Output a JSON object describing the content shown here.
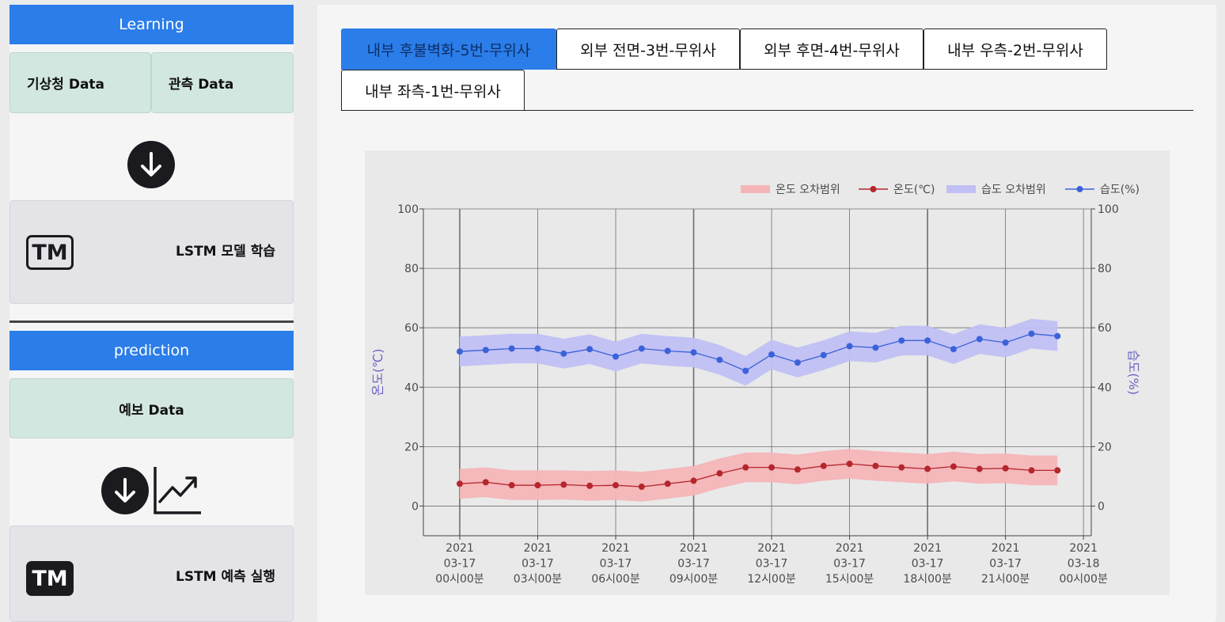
{
  "sidebar": {
    "learning_title": "Learning",
    "kma_data": "기상청 Data",
    "obs_data": "관측 Data",
    "train_label": "LSTM 모델 학습",
    "tm_text": "TM",
    "prediction_title": "prediction",
    "forecast_data": "예보 Data",
    "predict_label": "LSTM 예측 실행"
  },
  "tabs": [
    {
      "label": "내부 후불벽화-5번-무위사",
      "active": true
    },
    {
      "label": "외부 전면-3번-무위사",
      "active": false
    },
    {
      "label": "외부 후면-4번-무위사",
      "active": false
    },
    {
      "label": "내부 우측-2번-무위사",
      "active": false
    },
    {
      "label": "내부 좌측-1번-무위사",
      "active": false
    }
  ],
  "chart_data": {
    "type": "line",
    "legend_position": "top-right",
    "grid": true,
    "colors": {
      "temp": "#b5272d",
      "temp_band": "#f5b5b8",
      "hum": "#3b62d9",
      "hum_band": "#c0c0f4"
    },
    "legend": [
      "온도 오차범위",
      "온도(℃)",
      "습도 오차범위",
      "습도(%)"
    ],
    "y_left": {
      "label": "온도(℃)",
      "range": [
        -10,
        100
      ],
      "ticks": [
        0,
        20,
        40,
        60,
        80,
        100
      ]
    },
    "y_right": {
      "label": "습도(%)",
      "range": [
        -10,
        100
      ],
      "ticks": [
        0,
        20,
        40,
        60,
        80,
        100
      ]
    },
    "x_ticks": [
      {
        "h": 0,
        "lines": [
          "2021",
          "03-17",
          "00시00분"
        ]
      },
      {
        "h": 3,
        "lines": [
          "2021",
          "03-17",
          "03시00분"
        ]
      },
      {
        "h": 6,
        "lines": [
          "2021",
          "03-17",
          "06시00분"
        ]
      },
      {
        "h": 9,
        "lines": [
          "2021",
          "03-17",
          "09시00분"
        ]
      },
      {
        "h": 12,
        "lines": [
          "2021",
          "03-17",
          "12시00분"
        ]
      },
      {
        "h": 15,
        "lines": [
          "2021",
          "03-17",
          "15시00분"
        ]
      },
      {
        "h": 18,
        "lines": [
          "2021",
          "03-17",
          "18시00분"
        ]
      },
      {
        "h": 21,
        "lines": [
          "2021",
          "03-17",
          "21시00분"
        ]
      },
      {
        "h": 24,
        "lines": [
          "2021",
          "03-18",
          "00시00분"
        ]
      }
    ],
    "x_range_hours": [
      -1.4,
      24.3
    ],
    "x_hours": [
      0,
      1,
      2,
      3,
      4,
      5,
      6,
      7,
      8,
      9,
      10,
      11,
      12,
      13,
      14,
      15,
      16,
      17,
      18,
      19,
      20,
      21,
      22,
      23
    ],
    "series": [
      {
        "name": "온도(℃)",
        "axis": "left",
        "values": [
          7.5,
          8.0,
          7.0,
          7.0,
          7.2,
          6.8,
          7.0,
          6.5,
          7.5,
          8.5,
          11.0,
          13.0,
          13.0,
          12.3,
          13.5,
          14.2,
          13.5,
          13.0,
          12.5,
          13.3,
          12.5,
          12.7,
          12.0,
          12.0
        ],
        "band_upper": [
          12.5,
          13.0,
          12.0,
          12.0,
          12.0,
          11.8,
          12.0,
          11.5,
          12.5,
          13.5,
          16.0,
          18.0,
          18.0,
          17.3,
          18.5,
          19.2,
          18.5,
          18.0,
          17.5,
          18.3,
          17.5,
          17.7,
          17.0,
          17.0
        ],
        "band_lower": [
          2.5,
          3.0,
          2.0,
          2.0,
          2.2,
          1.8,
          2.0,
          1.5,
          2.5,
          3.5,
          6.0,
          8.0,
          8.0,
          7.3,
          8.5,
          9.2,
          8.5,
          8.0,
          7.5,
          8.3,
          7.5,
          7.7,
          7.0,
          7.0
        ]
      },
      {
        "name": "습도(%)",
        "axis": "right",
        "values": [
          52.0,
          52.5,
          53.0,
          53.0,
          51.3,
          52.8,
          50.3,
          53.0,
          52.2,
          51.7,
          49.2,
          45.5,
          51.0,
          48.3,
          50.8,
          53.8,
          53.3,
          55.7,
          55.7,
          52.8,
          56.2,
          55.0,
          58.0,
          57.2
        ],
        "band_upper": [
          57.0,
          57.5,
          58.0,
          58.0,
          56.3,
          57.8,
          55.3,
          58.0,
          57.2,
          56.7,
          54.2,
          50.5,
          56.0,
          53.3,
          55.8,
          58.8,
          58.3,
          60.7,
          60.7,
          57.8,
          61.2,
          60.0,
          63.0,
          62.2
        ],
        "band_lower": [
          47.0,
          47.5,
          48.0,
          48.0,
          46.3,
          47.8,
          45.3,
          48.0,
          47.2,
          46.7,
          44.2,
          40.5,
          46.0,
          43.3,
          45.8,
          48.8,
          48.3,
          50.7,
          50.7,
          47.8,
          51.2,
          50.0,
          53.0,
          52.2
        ]
      }
    ]
  }
}
